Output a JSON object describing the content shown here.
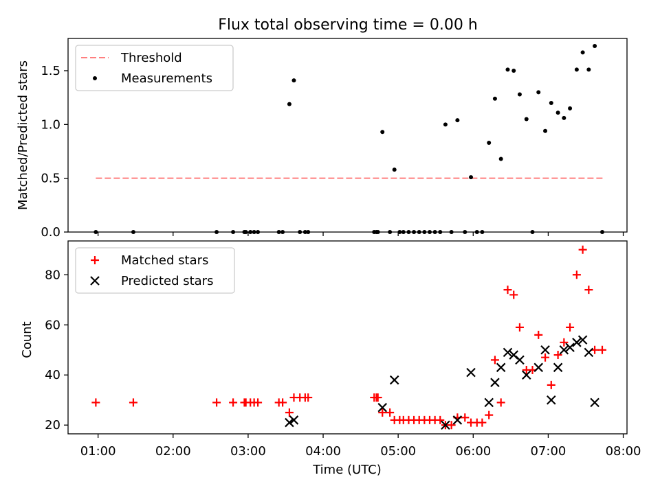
{
  "chart_data": [
    {
      "type": "scatter",
      "panel": "top",
      "title": "Flux total observing time = 0.00 h",
      "xlabel": "",
      "ylabel": "Matched/Predicted stars",
      "ylim": [
        0.0,
        1.8
      ],
      "xlim": [
        0.6,
        8.05
      ],
      "yticks": [
        0.0,
        0.5,
        1.0,
        1.5
      ],
      "ytick_labels": [
        "0.0",
        "0.5",
        "1.0",
        "1.5"
      ],
      "threshold": {
        "name": "Threshold",
        "value": 0.5,
        "x_range": [
          0.97,
          7.73
        ],
        "color": "#ff7f7f"
      },
      "legend": [
        "Threshold",
        "Measurements"
      ],
      "legend_position": "upper-left",
      "series": [
        {
          "name": "Measurements",
          "marker": "dot",
          "color": "#000000",
          "x": [
            0.97,
            1.47,
            2.58,
            2.8,
            2.95,
            2.97,
            3.03,
            3.08,
            3.13,
            3.41,
            3.46,
            3.55,
            3.61,
            3.69,
            3.76,
            3.8,
            4.68,
            4.71,
            4.73,
            4.79,
            4.89,
            4.95,
            5.02,
            5.07,
            5.14,
            5.21,
            5.28,
            5.35,
            5.42,
            5.49,
            5.56,
            5.63,
            5.71,
            5.79,
            5.89,
            5.97,
            6.05,
            6.12,
            6.21,
            6.29,
            6.37,
            6.46,
            6.54,
            6.62,
            6.71,
            6.79,
            6.87,
            6.96,
            7.04,
            7.13,
            7.21,
            7.29,
            7.38,
            7.46,
            7.54,
            7.62,
            7.72
          ],
          "y": [
            0.0,
            0.0,
            0.0,
            0.0,
            0.0,
            0.0,
            0.0,
            0.0,
            0.0,
            0.0,
            0.0,
            1.19,
            1.41,
            0.0,
            0.0,
            0.0,
            0.0,
            0.0,
            0.0,
            0.93,
            0.0,
            0.58,
            0.0,
            0.0,
            0.0,
            0.0,
            0.0,
            0.0,
            0.0,
            0.0,
            0.0,
            1.0,
            0.0,
            1.04,
            0.0,
            0.51,
            0.0,
            0.0,
            0.83,
            1.24,
            0.68,
            1.51,
            1.5,
            1.28,
            1.05,
            0.0,
            1.3,
            0.94,
            1.2,
            1.11,
            1.06,
            1.15,
            1.51,
            1.67,
            1.51,
            1.73,
            0.0
          ]
        }
      ]
    },
    {
      "type": "scatter",
      "panel": "bottom",
      "title": "",
      "xlabel": "Time (UTC)",
      "ylabel": "Count",
      "ylim": [
        16.5,
        93.5
      ],
      "xlim": [
        0.6,
        8.05
      ],
      "yticks": [
        20,
        40,
        60,
        80
      ],
      "ytick_labels": [
        "20",
        "40",
        "60",
        "80"
      ],
      "xticks": [
        1,
        2,
        3,
        4,
        5,
        6,
        7,
        8
      ],
      "xtick_labels": [
        "01:00",
        "02:00",
        "03:00",
        "04:00",
        "05:00",
        "06:00",
        "07:00",
        "08:00"
      ],
      "legend": [
        "Matched stars",
        "Predicted stars"
      ],
      "legend_position": "upper-left",
      "series": [
        {
          "name": "Matched stars",
          "marker": "plus",
          "color": "#ff0000",
          "x": [
            0.97,
            1.47,
            2.58,
            2.8,
            2.95,
            2.97,
            3.03,
            3.08,
            3.13,
            3.41,
            3.46,
            3.55,
            3.61,
            3.69,
            3.76,
            3.8,
            4.68,
            4.71,
            4.73,
            4.79,
            4.89,
            4.95,
            5.02,
            5.07,
            5.14,
            5.21,
            5.28,
            5.35,
            5.42,
            5.49,
            5.56,
            5.63,
            5.71,
            5.79,
            5.89,
            5.97,
            6.05,
            6.12,
            6.21,
            6.29,
            6.37,
            6.46,
            6.54,
            6.62,
            6.71,
            6.79,
            6.87,
            6.96,
            7.04,
            7.13,
            7.21,
            7.29,
            7.38,
            7.46,
            7.54,
            7.62,
            7.72
          ],
          "y": [
            29,
            29,
            29,
            29,
            29,
            29,
            29,
            29,
            29,
            29,
            29,
            25,
            31,
            31,
            31,
            31,
            31,
            31,
            31,
            25,
            25,
            22,
            22,
            22,
            22,
            22,
            22,
            22,
            22,
            22,
            22,
            20,
            20,
            23,
            23,
            21,
            21,
            21,
            24,
            46,
            29,
            74,
            72,
            59,
            42,
            42,
            56,
            47,
            36,
            48,
            53,
            59,
            80,
            90,
            74,
            50,
            50
          ]
        },
        {
          "name": "Predicted stars",
          "marker": "x",
          "color": "#000000",
          "x": [
            3.55,
            3.61,
            4.79,
            4.95,
            5.63,
            5.79,
            5.97,
            6.21,
            6.29,
            6.37,
            6.46,
            6.54,
            6.62,
            6.71,
            6.87,
            6.96,
            7.04,
            7.13,
            7.21,
            7.29,
            7.38,
            7.46,
            7.54,
            7.62
          ],
          "y": [
            21,
            22,
            27,
            38,
            20,
            22,
            41,
            29,
            37,
            43,
            49,
            48,
            46,
            40,
            43,
            50,
            30,
            43,
            50,
            51,
            53,
            54,
            49,
            29
          ]
        }
      ]
    }
  ]
}
